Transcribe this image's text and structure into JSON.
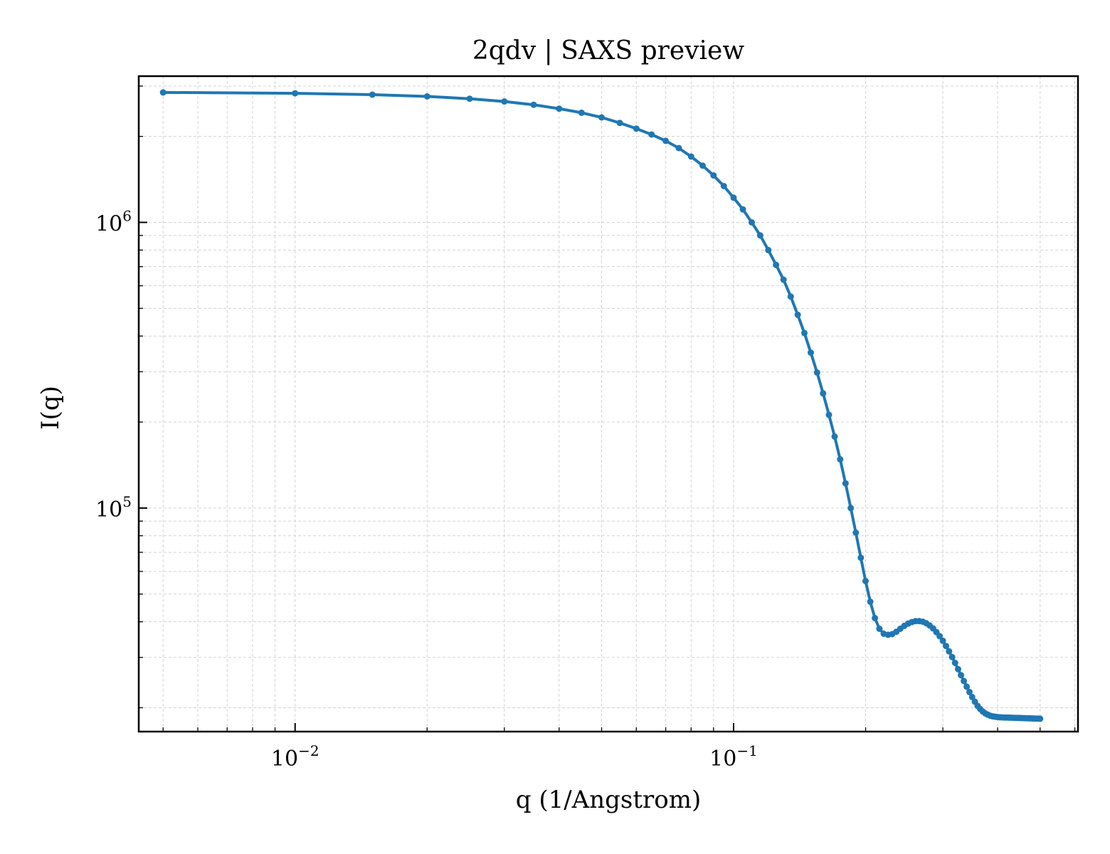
{
  "chart_data": {
    "type": "line",
    "title": "2qdv | SAXS preview",
    "xlabel": "q (1/Angstrom)",
    "ylabel": "I(q)",
    "xscale": "log",
    "yscale": "log",
    "xlim": [
      0.0044,
      0.61
    ],
    "ylim": [
      16500,
      3250000
    ],
    "grid": true,
    "x_ticks": [
      {
        "value": 0.01,
        "base": "10",
        "exp": "−2"
      },
      {
        "value": 0.1,
        "base": "10",
        "exp": "−1"
      }
    ],
    "y_ticks": [
      {
        "value": 100000,
        "base": "10",
        "exp": "5"
      },
      {
        "value": 1000000,
        "base": "10",
        "exp": "6"
      }
    ],
    "color": "#1f77b4",
    "series": [
      {
        "x": [
          0.005,
          0.01,
          0.015,
          0.02,
          0.025,
          0.03,
          0.035,
          0.04,
          0.045,
          0.05,
          0.055,
          0.06,
          0.065,
          0.07,
          0.075,
          0.08,
          0.085,
          0.09,
          0.095,
          0.1,
          0.105,
          0.11,
          0.115,
          0.12,
          0.125,
          0.13,
          0.135,
          0.14,
          0.145,
          0.15,
          0.155,
          0.16,
          0.165,
          0.17,
          0.175,
          0.18,
          0.185,
          0.19,
          0.195,
          0.2,
          0.205,
          0.21,
          0.215,
          0.22,
          0.225,
          0.23,
          0.235,
          0.24,
          0.245,
          0.25,
          0.255,
          0.26,
          0.265,
          0.27,
          0.275,
          0.28,
          0.285,
          0.29,
          0.295,
          0.3,
          0.305,
          0.31,
          0.315,
          0.32,
          0.325,
          0.33,
          0.335,
          0.34,
          0.345,
          0.35,
          0.355,
          0.36,
          0.365,
          0.37,
          0.375,
          0.38,
          0.385,
          0.39,
          0.395,
          0.4,
          0.405,
          0.41,
          0.415,
          0.42,
          0.425,
          0.43,
          0.435,
          0.44,
          0.445,
          0.45,
          0.455,
          0.46,
          0.465,
          0.47,
          0.475,
          0.48,
          0.485,
          0.49,
          0.495,
          0.5
        ],
        "y": [
          2850000,
          2830000,
          2800000,
          2760000,
          2710000,
          2650000,
          2580000,
          2500000,
          2420000,
          2330000,
          2230000,
          2130000,
          2030000,
          1930000,
          1820000,
          1700000,
          1580000,
          1460000,
          1340000,
          1220000,
          1110000,
          1000000,
          900000,
          800000,
          710000,
          630000,
          550000,
          475000,
          410000,
          350000,
          298000,
          252000,
          212000,
          178000,
          148000,
          122000,
          100000,
          82000,
          67000,
          55500,
          47000,
          41200,
          37800,
          36300,
          36000,
          36200,
          36900,
          37800,
          38700,
          39400,
          39900,
          40200,
          40200,
          40000,
          39500,
          38800,
          37900,
          36800,
          35600,
          34300,
          32900,
          31500,
          30100,
          28700,
          27300,
          26000,
          24800,
          23700,
          22700,
          21800,
          21000,
          20300,
          19800,
          19400,
          19100,
          18900,
          18750,
          18650,
          18600,
          18550,
          18520,
          18500,
          18480,
          18470,
          18460,
          18450,
          18440,
          18430,
          18420,
          18410,
          18400,
          18390,
          18380,
          18370,
          18360,
          18350,
          18340,
          18330,
          18320,
          18300
        ]
      }
    ]
  }
}
